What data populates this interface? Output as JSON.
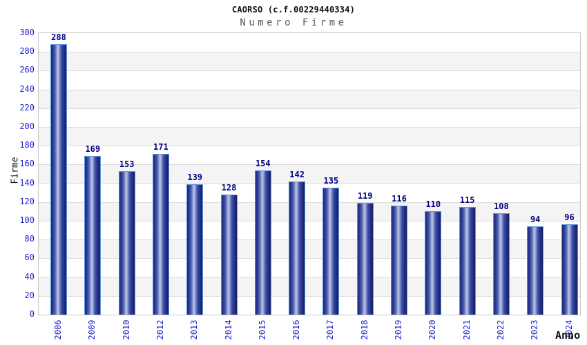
{
  "chart_data": {
    "type": "bar",
    "title": "CAORSO (c.f.00229440334)",
    "subtitle": "Numero Firme",
    "xlabel": "Anno",
    "ylabel": "Firme",
    "categories": [
      "2006",
      "2009",
      "2010",
      "2012",
      "2013",
      "2014",
      "2015",
      "2016",
      "2017",
      "2018",
      "2019",
      "2020",
      "2021",
      "2022",
      "2023",
      "2024"
    ],
    "values": [
      288,
      169,
      153,
      171,
      139,
      128,
      154,
      142,
      135,
      119,
      116,
      110,
      115,
      108,
      94,
      96
    ],
    "ylim": [
      0,
      300
    ],
    "ytick_step": 20,
    "yticks": [
      0,
      20,
      40,
      60,
      80,
      100,
      120,
      140,
      160,
      180,
      200,
      220,
      240,
      260,
      280,
      300
    ],
    "grid": true,
    "legend": "none",
    "background_bands": "alternating horizontal white and light gray, 20-unit tall",
    "bar_style": "vertical cylinder gradient navy-blue with light blue border, value labels above bars"
  },
  "colors": {
    "axis_tick_label": "#2222cc",
    "bar_value_label": "#000080",
    "bar_border": "#5e97e0",
    "bar_dark": "#1b266f",
    "bar_mid": "#2e3f9f",
    "bar_highlight": "#c2cbe9",
    "band_gray": "#f4f4f4",
    "band_white": "#ffffff",
    "gridline": "#dcdcdc",
    "plot_border": "#c8c8c8",
    "title_color": "#111111",
    "subtitle_color": "#5a5a5a"
  }
}
